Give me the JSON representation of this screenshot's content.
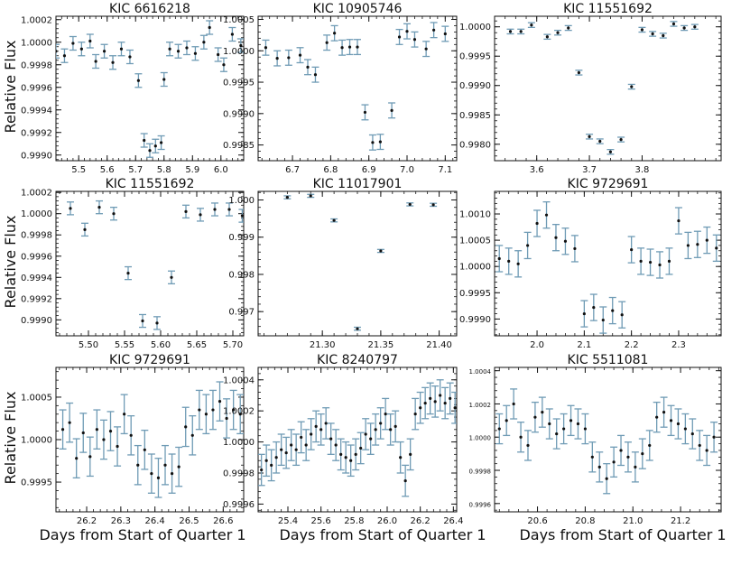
{
  "figure": {
    "ylabel": "Relative Flux",
    "xlabel": "Days from Start of Quarter 1",
    "errorbar_color": "#6f9bb5",
    "point_color": "#111111"
  },
  "chart_data": [
    {
      "type": "scatter",
      "title": "KIC 6616218",
      "xlim": [
        5.42,
        6.08
      ],
      "ylim": [
        0.99895,
        1.00023
      ],
      "xticks": [
        5.5,
        5.6,
        5.7,
        5.8,
        5.9,
        6.0
      ],
      "xtick_labels": [
        "5.5",
        "5.6",
        "5.7",
        "5.8",
        "5.9",
        "6.0"
      ],
      "yticks": [
        0.999,
        0.9992,
        0.9994,
        0.9996,
        0.9998,
        1.0,
        1.0002
      ],
      "ytick_labels": [
        "0.9990",
        "0.9992",
        "0.9994",
        "0.9996",
        "0.9998",
        "1.0000",
        "1.0002"
      ],
      "x": [
        5.42,
        5.45,
        5.48,
        5.51,
        5.54,
        5.56,
        5.59,
        5.62,
        5.65,
        5.68,
        5.71,
        5.73,
        5.75,
        5.77,
        5.79,
        5.8,
        5.82,
        5.85,
        5.88,
        5.91,
        5.94,
        5.96,
        5.99,
        6.01,
        6.04,
        6.07
      ],
      "y": [
        0.99992,
        0.99988,
        0.99999,
        0.99994,
        1.00001,
        0.99983,
        0.99992,
        0.99982,
        0.99994,
        0.99987,
        0.99966,
        0.99913,
        0.99904,
        0.99908,
        0.99911,
        0.99967,
        0.99994,
        0.99992,
        0.99995,
        0.9999,
        1.0,
        1.00013,
        0.99989,
        0.9998,
        1.00007,
        0.99997
      ],
      "err": [
        6e-05,
        6e-05,
        6e-05,
        6e-05,
        6e-05,
        6e-05,
        6e-05,
        6e-05,
        6e-05,
        6e-05,
        6e-05,
        6e-05,
        6e-05,
        6e-05,
        6e-05,
        6e-05,
        6e-05,
        6e-05,
        6e-05,
        6e-05,
        6e-05,
        6e-05,
        6e-05,
        6e-05,
        6e-05,
        6e-05
      ]
    },
    {
      "type": "scatter",
      "title": "KIC 10905746",
      "xlim": [
        6.61,
        7.13
      ],
      "ylim": [
        0.99825,
        1.00055
      ],
      "xticks": [
        6.7,
        6.8,
        6.9,
        7.0,
        7.1
      ],
      "xtick_labels": [
        "6.7",
        "6.8",
        "6.9",
        "7.0",
        "7.1"
      ],
      "yticks": [
        0.9985,
        0.999,
        0.9995,
        1.0,
        1.0005
      ],
      "ytick_labels": [
        "0.9985",
        "0.9990",
        "0.9995",
        "1.0000",
        "1.0005"
      ],
      "x": [
        6.63,
        6.66,
        6.69,
        6.72,
        6.74,
        6.76,
        6.79,
        6.81,
        6.83,
        6.85,
        6.87,
        6.89,
        6.91,
        6.93,
        6.96,
        6.98,
        7.0,
        7.02,
        7.05,
        7.07,
        7.1
      ],
      "y": [
        1.00005,
        0.99988,
        0.99989,
        0.99993,
        0.99974,
        0.99962,
        1.00013,
        1.00028,
        1.00005,
        1.00006,
        1.00006,
        0.99902,
        0.99854,
        0.99855,
        0.99905,
        1.00022,
        1.00031,
        1.00018,
        1.00003,
        1.00033,
        1.00027
      ],
      "err": [
        0.00012,
        0.00012,
        0.00012,
        0.00012,
        0.00012,
        0.00012,
        0.00012,
        0.00012,
        0.00012,
        0.00012,
        0.00012,
        0.00012,
        0.00012,
        0.00012,
        0.00012,
        0.00012,
        0.00012,
        0.00012,
        0.00012,
        0.00012,
        0.00012
      ]
    },
    {
      "type": "scatter",
      "title": "KIC 11551692",
      "xlim": [
        3.52,
        3.95
      ],
      "ylim": [
        0.99772,
        1.00018
      ],
      "xticks": [
        3.6,
        3.7,
        3.8
      ],
      "xtick_labels": [
        "3.6",
        "3.7",
        "3.8"
      ],
      "yticks": [
        0.998,
        0.9985,
        0.999,
        0.9995,
        1.0
      ],
      "ytick_labels": [
        "0.9980",
        "0.9985",
        "0.9990",
        "0.9995",
        "1.0000"
      ],
      "x": [
        3.55,
        3.57,
        3.59,
        3.62,
        3.64,
        3.66,
        3.68,
        3.7,
        3.72,
        3.74,
        3.76,
        3.78,
        3.8,
        3.82,
        3.84,
        3.86,
        3.88,
        3.9
      ],
      "y": [
        0.99992,
        0.99992,
        1.00003,
        0.99983,
        0.9999,
        0.99998,
        0.99922,
        0.99813,
        0.99805,
        0.99787,
        0.99808,
        0.99898,
        0.99995,
        0.99988,
        0.99985,
        1.00005,
        0.99998,
        1.0
      ],
      "err": [
        4e-05,
        4e-05,
        4e-05,
        4e-05,
        4e-05,
        4e-05,
        4e-05,
        4e-05,
        4e-05,
        4e-05,
        4e-05,
        4e-05,
        4e-05,
        4e-05,
        4e-05,
        4e-05,
        4e-05,
        4e-05
      ]
    },
    {
      "type": "scatter",
      "title": "KIC 11551692",
      "xlim": [
        5.455,
        5.715
      ],
      "ylim": [
        0.99885,
        1.00021
      ],
      "xticks": [
        5.5,
        5.55,
        5.6,
        5.65,
        5.7
      ],
      "xtick_labels": [
        "5.50",
        "5.55",
        "5.60",
        "5.65",
        "5.70"
      ],
      "yticks": [
        0.999,
        0.9992,
        0.9994,
        0.9996,
        0.9998,
        1.0,
        1.0002
      ],
      "ytick_labels": [
        "0.9990",
        "0.9992",
        "0.9994",
        "0.9996",
        "0.9998",
        "1.0000",
        "1.0002"
      ],
      "x": [
        5.475,
        5.495,
        5.515,
        5.535,
        5.555,
        5.575,
        5.595,
        5.615,
        5.635,
        5.655,
        5.675,
        5.695,
        5.713
      ],
      "y": [
        1.00005,
        0.99985,
        1.00006,
        1.0,
        0.99944,
        0.99899,
        0.99897,
        0.9994,
        1.00002,
        0.99999,
        1.00004,
        1.00004,
        0.99998
      ],
      "err": [
        6e-05,
        6e-05,
        6e-05,
        6e-05,
        6e-05,
        6e-05,
        6e-05,
        6e-05,
        6e-05,
        6e-05,
        6e-05,
        6e-05,
        6e-05
      ]
    },
    {
      "type": "scatter",
      "title": "KIC 11017901",
      "xlim": [
        21.245,
        21.415
      ],
      "ylim": [
        0.99635,
        1.00023
      ],
      "xticks": [
        21.3,
        21.35,
        21.4
      ],
      "xtick_labels": [
        "21.30",
        "21.35",
        "21.40"
      ],
      "yticks": [
        0.997,
        0.998,
        0.999,
        1.0
      ],
      "ytick_labels": [
        "0.997",
        "0.998",
        "0.999",
        "1.000"
      ],
      "x": [
        21.27,
        21.29,
        21.31,
        21.33,
        21.35,
        21.375,
        21.395
      ],
      "y": [
        1.00007,
        1.00011,
        0.99945,
        0.99654,
        0.99863,
        0.99988,
        0.99987
      ],
      "err": [
        4e-05,
        4e-05,
        4e-05,
        4e-05,
        4e-05,
        4e-05,
        4e-05
      ]
    },
    {
      "type": "scatter",
      "title": "KIC 9729691",
      "xlim": [
        1.91,
        2.39
      ],
      "ylim": [
        0.99868,
        1.00143
      ],
      "xticks": [
        2.0,
        2.1,
        2.2,
        2.3
      ],
      "xtick_labels": [
        "2.0",
        "2.1",
        "2.2",
        "2.3"
      ],
      "yticks": [
        0.999,
        0.9995,
        1.0,
        1.0005,
        1.001
      ],
      "ytick_labels": [
        "0.9990",
        "0.9995",
        "1.0000",
        "1.0005",
        "1.0010"
      ],
      "x": [
        1.92,
        1.94,
        1.96,
        1.98,
        2.0,
        2.02,
        2.04,
        2.06,
        2.08,
        2.1,
        2.12,
        2.14,
        2.16,
        2.18,
        2.2,
        2.22,
        2.24,
        2.26,
        2.28,
        2.3,
        2.32,
        2.34,
        2.36,
        2.38
      ],
      "y": [
        1.00015,
        1.0001,
        1.00005,
        1.0004,
        1.00082,
        1.00098,
        1.00055,
        1.00048,
        1.00034,
        0.9991,
        0.99922,
        0.99898,
        0.99916,
        0.99908,
        1.00032,
        1.0001,
        1.00008,
        1.00003,
        1.0001,
        1.00087,
        1.0004,
        1.00042,
        1.0005,
        1.00035
      ],
      "err": [
        0.00025,
        0.00025,
        0.00025,
        0.00025,
        0.00025,
        0.00025,
        0.00025,
        0.00025,
        0.00025,
        0.00025,
        0.00025,
        0.00025,
        0.00025,
        0.00025,
        0.00025,
        0.00025,
        0.00025,
        0.00025,
        0.00025,
        0.00025,
        0.00025,
        0.00025,
        0.00025,
        0.00025
      ]
    },
    {
      "type": "scatter",
      "title": "KIC 9729691",
      "xlim": [
        26.11,
        26.66
      ],
      "ylim": [
        0.99915,
        1.00085
      ],
      "xticks": [
        26.2,
        26.3,
        26.4,
        26.5,
        26.6
      ],
      "xtick_labels": [
        "26.2",
        "26.3",
        "26.4",
        "26.5",
        "26.6"
      ],
      "yticks": [
        0.9995,
        1.0,
        1.0005
      ],
      "ytick_labels": [
        "0.9995",
        "1.0000",
        "1.0005"
      ],
      "x": [
        26.13,
        26.15,
        26.17,
        26.19,
        26.21,
        26.23,
        26.25,
        26.27,
        26.29,
        26.31,
        26.33,
        26.35,
        26.37,
        26.39,
        26.41,
        26.43,
        26.45,
        26.47,
        26.49,
        26.51,
        26.53,
        26.55,
        26.57,
        26.59,
        26.61,
        26.63,
        26.65
      ],
      "y": [
        1.00012,
        1.0002,
        0.99978,
        1.00008,
        0.9998,
        1.00012,
        1.0,
        1.0001,
        0.99992,
        1.0003,
        1.00005,
        0.9997,
        0.99988,
        0.9996,
        0.99955,
        0.9997,
        0.9996,
        0.99968,
        1.00015,
        1.00005,
        1.00035,
        1.0003,
        1.00035,
        1.00045,
        1.00025,
        1.00035,
        1.0003
      ],
      "err": [
        0.00023,
        0.00023,
        0.00023,
        0.00023,
        0.00023,
        0.00023,
        0.00023,
        0.00023,
        0.00023,
        0.00023,
        0.00023,
        0.00023,
        0.00023,
        0.00023,
        0.00023,
        0.00023,
        0.00023,
        0.00023,
        0.00023,
        0.00023,
        0.00023,
        0.00023,
        0.00023,
        0.00023,
        0.00023,
        0.00023,
        0.00023
      ]
    },
    {
      "type": "scatter",
      "title": "KIC 8240797",
      "xlim": [
        25.22,
        26.42
      ],
      "ylim": [
        0.99955,
        1.00048
      ],
      "xticks": [
        25.4,
        25.6,
        25.8,
        26.0,
        26.2,
        26.4
      ],
      "xtick_labels": [
        "25.4",
        "25.6",
        "25.8",
        "26.0",
        "26.2",
        "26.4"
      ],
      "yticks": [
        0.9996,
        0.9998,
        1.0,
        1.0002,
        1.0004
      ],
      "ytick_labels": [
        "0.9996",
        "0.9998",
        "1.0000",
        "1.0002",
        "1.0004"
      ],
      "x": [
        25.24,
        25.27,
        25.3,
        25.33,
        25.36,
        25.39,
        25.42,
        25.45,
        25.48,
        25.51,
        25.54,
        25.57,
        25.6,
        25.63,
        25.66,
        25.69,
        25.72,
        25.75,
        25.78,
        25.81,
        25.84,
        25.87,
        25.9,
        25.93,
        25.96,
        25.99,
        26.02,
        26.05,
        26.08,
        26.11,
        26.14,
        26.17,
        26.2,
        26.23,
        26.26,
        26.29,
        26.32,
        26.35,
        26.38,
        26.41
      ],
      "y": [
        0.99982,
        0.99988,
        0.99985,
        0.9999,
        0.99995,
        0.99993,
        0.99998,
        0.99995,
        1.00003,
        0.99998,
        1.00005,
        1.0001,
        1.00008,
        1.00012,
        1.00002,
        0.99998,
        0.99992,
        0.9999,
        0.99988,
        0.99992,
        0.99996,
        1.00005,
        1.00002,
        1.00008,
        1.00012,
        1.00018,
        1.00008,
        1.0001,
        0.9999,
        0.99975,
        0.99992,
        1.00018,
        1.00022,
        1.00025,
        1.00028,
        1.00026,
        1.0003,
        1.00025,
        1.00028,
        1.00022
      ],
      "err": [
        0.0001,
        0.0001,
        0.0001,
        0.0001,
        0.0001,
        0.0001,
        0.0001,
        0.0001,
        0.0001,
        0.0001,
        0.0001,
        0.0001,
        0.0001,
        0.0001,
        0.0001,
        0.0001,
        0.0001,
        0.0001,
        0.0001,
        0.0001,
        0.0001,
        0.0001,
        0.0001,
        0.0001,
        0.0001,
        0.0001,
        0.0001,
        0.0001,
        0.0001,
        0.0001,
        0.0001,
        0.0001,
        0.0001,
        0.0001,
        0.0001,
        0.0001,
        0.0001,
        0.0001,
        0.0001,
        0.0001
      ]
    },
    {
      "type": "scatter",
      "title": "KIC 5511081",
      "xlim": [
        20.42,
        21.37
      ],
      "ylim": [
        0.99955,
        1.00042
      ],
      "xticks": [
        20.6,
        20.8,
        21.0,
        21.2
      ],
      "xtick_labels": [
        "20.6",
        "20.8",
        "21.0",
        "21.2"
      ],
      "yticks": [
        0.9996,
        0.9998,
        1.0,
        1.0002,
        1.0004
      ],
      "ytick_labels": [
        "0.9996",
        "0.9998",
        "1.0000",
        "1.0002",
        "1.0004"
      ],
      "x": [
        20.44,
        20.47,
        20.5,
        20.53,
        20.56,
        20.59,
        20.62,
        20.65,
        20.68,
        20.71,
        20.74,
        20.77,
        20.8,
        20.83,
        20.86,
        20.89,
        20.92,
        20.95,
        20.98,
        21.01,
        21.04,
        21.07,
        21.1,
        21.13,
        21.16,
        21.19,
        21.22,
        21.25,
        21.28,
        21.31,
        21.34
      ],
      "y": [
        1.00005,
        1.0001,
        1.0002,
        1.0,
        0.99995,
        1.00012,
        1.00015,
        1.00008,
        1.00002,
        1.00005,
        1.0001,
        1.00008,
        1.00005,
        0.99988,
        0.99982,
        0.99975,
        0.99985,
        0.99992,
        0.99988,
        0.99982,
        0.9999,
        0.99995,
        1.00012,
        1.00015,
        1.0001,
        1.00008,
        1.00005,
        1.00002,
        0.99995,
        0.99992,
        1.0
      ],
      "err": [
        9e-05,
        9e-05,
        9e-05,
        9e-05,
        9e-05,
        9e-05,
        9e-05,
        9e-05,
        9e-05,
        9e-05,
        9e-05,
        9e-05,
        9e-05,
        9e-05,
        9e-05,
        9e-05,
        9e-05,
        9e-05,
        9e-05,
        9e-05,
        9e-05,
        9e-05,
        9e-05,
        9e-05,
        9e-05,
        9e-05,
        9e-05,
        9e-05,
        9e-05,
        9e-05,
        9e-05
      ]
    }
  ]
}
